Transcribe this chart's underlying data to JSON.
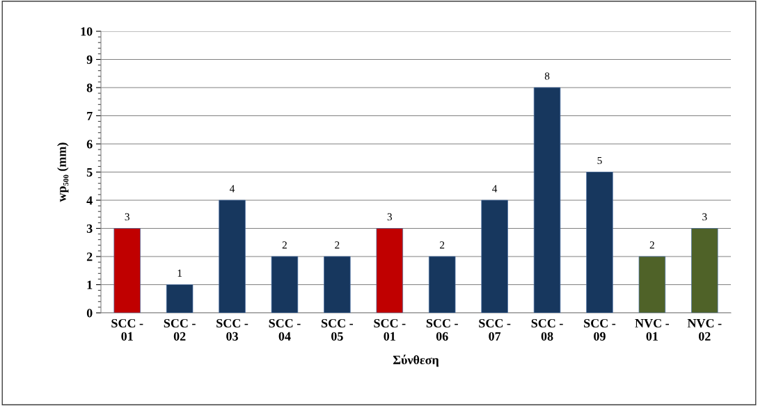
{
  "chart_data": {
    "type": "bar",
    "xlabel": "Σύνθεση",
    "ylabel": "wp₅₀₀ (mm)",
    "categories": [
      "SCC -\n01",
      "SCC -\n02",
      "SCC -\n03",
      "SCC -\n04",
      "SCC -\n05",
      "SCC -\n01",
      "SCC -\n06",
      "SCC -\n07",
      "SCC -\n08",
      "SCC -\n09",
      "NVC -\n01",
      "NVC -\n02"
    ],
    "values": [
      3,
      1,
      4,
      2,
      2,
      3,
      2,
      4,
      8,
      5,
      2,
      3
    ],
    "colors": [
      "#c00000",
      "#17375e",
      "#17375e",
      "#17375e",
      "#17375e",
      "#c00000",
      "#17375e",
      "#17375e",
      "#17375e",
      "#17375e",
      "#4f6228",
      "#4f6228"
    ],
    "ylim": [
      0,
      10
    ],
    "yticks": [
      0,
      1,
      2,
      3,
      4,
      5,
      6,
      7,
      8,
      9,
      10
    ],
    "grid": "y",
    "data_labels": true,
    "legend": false
  }
}
